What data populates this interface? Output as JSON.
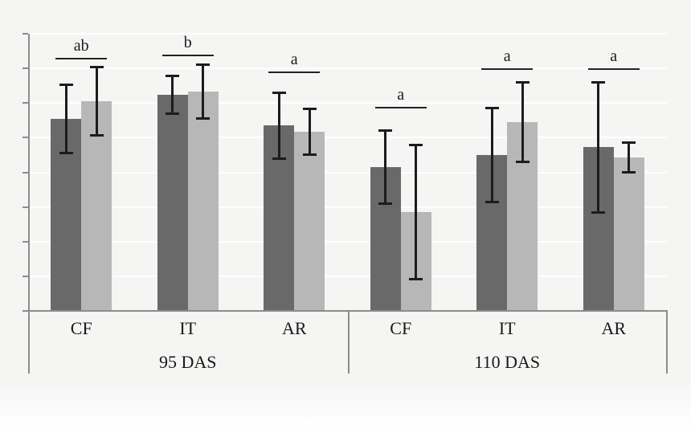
{
  "chart_data": {
    "type": "bar",
    "title": "",
    "xlabel": "",
    "ylabel": "",
    "y_axis": {
      "tick_labels_visible": false,
      "gridline_intervals": 8,
      "units_per_interval": 1,
      "ylim": [
        0,
        8
      ],
      "grid": "on",
      "gridline_color": "#ffffff"
    },
    "legend": "none",
    "groups": [
      {
        "label": "95 DAS",
        "categories": [
          "CF",
          "IT",
          "AR"
        ]
      },
      {
        "label": "110 DAS",
        "categories": [
          "CF",
          "IT",
          "AR"
        ]
      }
    ],
    "categories_flat": [
      "CF",
      "IT",
      "AR",
      "CF",
      "IT",
      "AR"
    ],
    "series": [
      {
        "name": "dark-gray-series",
        "color": "#696969",
        "values": [
          5.55,
          6.24,
          5.35,
          4.15,
          4.5,
          4.73
        ],
        "errors": [
          1.0,
          0.55,
          0.96,
          1.06,
          1.36,
          1.89
        ]
      },
      {
        "name": "light-gray-series",
        "color": "#b7b7b7",
        "values": [
          6.05,
          6.33,
          5.17,
          2.85,
          5.45,
          4.43
        ],
        "errors": [
          0.99,
          0.78,
          0.68,
          1.94,
          1.15,
          0.44
        ]
      }
    ],
    "significance": {
      "letters": [
        "ab",
        "b",
        "a",
        "a",
        "a",
        "a"
      ],
      "line_y_units": [
        7.3,
        7.4,
        6.9,
        5.9,
        7.0,
        7.0
      ]
    },
    "colors": {
      "background": "#f5f5f4",
      "axis": "#8c8c8c",
      "error_bar": "#1c1c1c",
      "text": "#1a1a1a"
    }
  }
}
